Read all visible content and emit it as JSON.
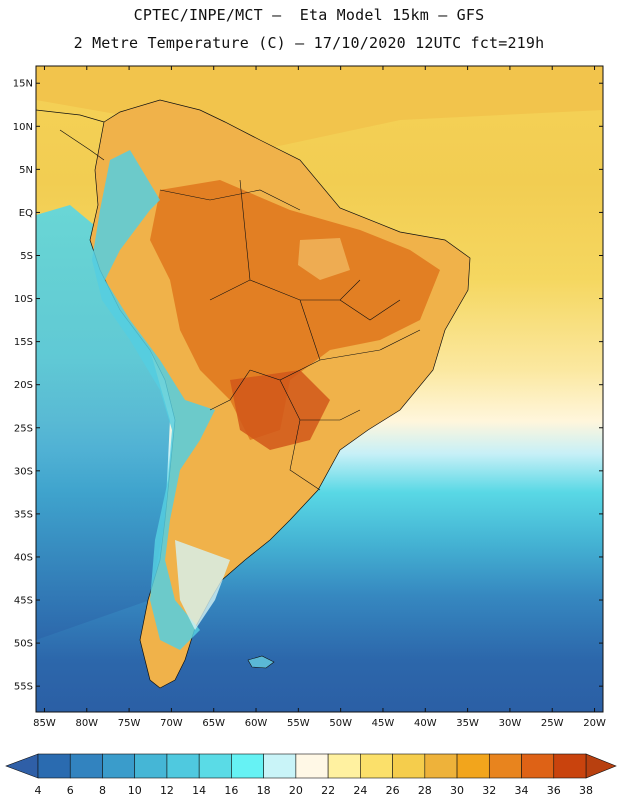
{
  "title": {
    "line1": "CPTEC/INPE/MCT –  Eta Model 15km – GFS",
    "line2": "2 Metre Temperature (C) – 17/10/2020 12UTC fct=219h"
  },
  "map": {
    "lon_range": [
      -86,
      -19
    ],
    "lat_range": [
      -58,
      17
    ],
    "lat_ticks": [
      {
        "value": 15,
        "label": "15N"
      },
      {
        "value": 10,
        "label": "10N"
      },
      {
        "value": 5,
        "label": "5N"
      },
      {
        "value": 0,
        "label": "EQ"
      },
      {
        "value": -5,
        "label": "5S"
      },
      {
        "value": -10,
        "label": "10S"
      },
      {
        "value": -15,
        "label": "15S"
      },
      {
        "value": -20,
        "label": "20S"
      },
      {
        "value": -25,
        "label": "25S"
      },
      {
        "value": -30,
        "label": "30S"
      },
      {
        "value": -35,
        "label": "35S"
      },
      {
        "value": -40,
        "label": "40S"
      },
      {
        "value": -45,
        "label": "45S"
      },
      {
        "value": -50,
        "label": "50S"
      },
      {
        "value": -55,
        "label": "55S"
      }
    ],
    "lon_ticks": [
      {
        "value": -85,
        "label": "85W"
      },
      {
        "value": -80,
        "label": "80W"
      },
      {
        "value": -75,
        "label": "75W"
      },
      {
        "value": -70,
        "label": "70W"
      },
      {
        "value": -65,
        "label": "65W"
      },
      {
        "value": -60,
        "label": "60W"
      },
      {
        "value": -55,
        "label": "55W"
      },
      {
        "value": -50,
        "label": "50W"
      },
      {
        "value": -45,
        "label": "45W"
      },
      {
        "value": -40,
        "label": "40W"
      },
      {
        "value": -35,
        "label": "35W"
      },
      {
        "value": -30,
        "label": "30W"
      },
      {
        "value": -25,
        "label": "25W"
      },
      {
        "value": -20,
        "label": "20W"
      }
    ]
  },
  "colorbar": {
    "labels": [
      "4",
      "6",
      "8",
      "10",
      "12",
      "14",
      "16",
      "18",
      "20",
      "22",
      "24",
      "26",
      "28",
      "30",
      "32",
      "34",
      "36",
      "38"
    ],
    "below_color": "#2f5fa7",
    "above_color": "#b8400f",
    "colors": [
      "#2a6bb0",
      "#3283bf",
      "#3a9ccb",
      "#45b6d6",
      "#4fc9df",
      "#5adbe6",
      "#66f2f4",
      "#c9f4f8",
      "#fff8e6",
      "#fff1a0",
      "#fbe06a",
      "#f5cd4c",
      "#eeb23a",
      "#f2a51c",
      "#e8841e",
      "#de6216",
      "#c9430d"
    ]
  }
}
